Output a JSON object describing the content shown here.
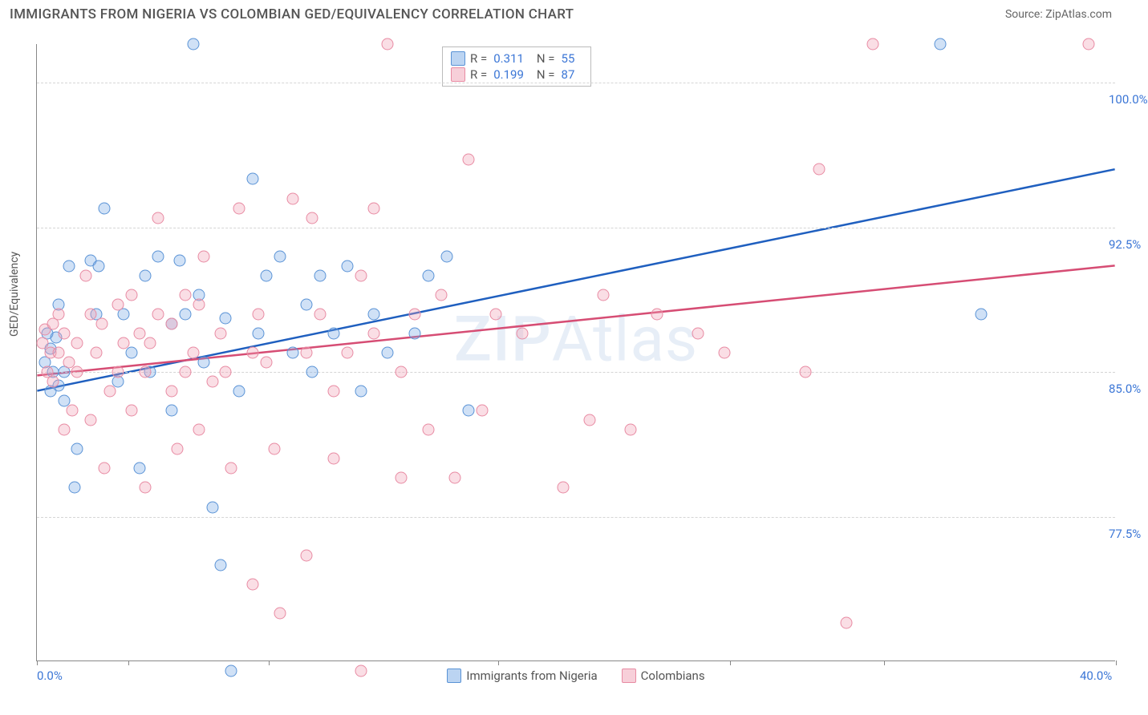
{
  "title": "IMMIGRANTS FROM NIGERIA VS COLOMBIAN GED/EQUIVALENCY CORRELATION CHART",
  "source": "Source: ZipAtlas.com",
  "y_axis_label": "GED/Equivalency",
  "watermark_bold": "ZIP",
  "watermark_rest": "Atlas",
  "chart": {
    "type": "scatter",
    "xlim": [
      0,
      40
    ],
    "ylim": [
      70,
      102
    ],
    "x_ticks": [
      0,
      3.4,
      8.6,
      17.1,
      25.7,
      31.4,
      40
    ],
    "x_tick_labels": {
      "0": "0.0%",
      "40": "40.0%"
    },
    "y_gridlines": [
      77.5,
      85.0,
      92.5,
      100.0
    ],
    "y_tick_labels": [
      "77.5%",
      "85.0%",
      "92.5%",
      "100.0%"
    ],
    "marker_radius": 7.5,
    "plot_bg": "#ffffff",
    "grid_color": "#d5d5d5",
    "axis_color": "#888888",
    "series": [
      {
        "name": "Immigrants from Nigeria",
        "color_fill": "rgba(120,170,230,0.35)",
        "color_stroke": "#5a93d6",
        "trend_color": "#1f5fbf",
        "trend_width": 2.5,
        "R": "0.311",
        "N": "55",
        "trend": {
          "x1": 0,
          "y1": 84.0,
          "x2": 40,
          "y2": 95.5
        },
        "points": [
          [
            0.3,
            85.5
          ],
          [
            0.4,
            87.0
          ],
          [
            0.5,
            84.0
          ],
          [
            0.5,
            86.2
          ],
          [
            0.6,
            85.0
          ],
          [
            0.7,
            86.8
          ],
          [
            0.8,
            88.5
          ],
          [
            0.8,
            84.3
          ],
          [
            1.0,
            85.0
          ],
          [
            1.0,
            83.5
          ],
          [
            1.2,
            90.5
          ],
          [
            1.4,
            79.0
          ],
          [
            1.5,
            81.0
          ],
          [
            2.0,
            90.8
          ],
          [
            2.2,
            88.0
          ],
          [
            2.3,
            90.5
          ],
          [
            2.5,
            93.5
          ],
          [
            3.0,
            84.5
          ],
          [
            3.2,
            88.0
          ],
          [
            3.5,
            86.0
          ],
          [
            3.8,
            80.0
          ],
          [
            4.0,
            90.0
          ],
          [
            4.2,
            85.0
          ],
          [
            4.5,
            91.0
          ],
          [
            5.0,
            87.5
          ],
          [
            5.0,
            83.0
          ],
          [
            5.3,
            90.8
          ],
          [
            5.5,
            88.0
          ],
          [
            5.8,
            102.0
          ],
          [
            6.0,
            89.0
          ],
          [
            6.2,
            85.5
          ],
          [
            6.5,
            78.0
          ],
          [
            6.8,
            75.0
          ],
          [
            7.0,
            87.8
          ],
          [
            7.2,
            69.5
          ],
          [
            7.5,
            84.0
          ],
          [
            8.0,
            95.0
          ],
          [
            8.2,
            87.0
          ],
          [
            8.5,
            90.0
          ],
          [
            9.0,
            91.0
          ],
          [
            9.5,
            86.0
          ],
          [
            10.0,
            88.5
          ],
          [
            10.2,
            85.0
          ],
          [
            10.5,
            90.0
          ],
          [
            11.0,
            87.0
          ],
          [
            11.5,
            90.5
          ],
          [
            12.0,
            84.0
          ],
          [
            12.5,
            88.0
          ],
          [
            13.0,
            86.0
          ],
          [
            14.0,
            87.0
          ],
          [
            14.5,
            90.0
          ],
          [
            15.2,
            91.0
          ],
          [
            16.0,
            83.0
          ],
          [
            33.5,
            102.0
          ],
          [
            35.0,
            88.0
          ]
        ]
      },
      {
        "name": "Colombians",
        "color_fill": "rgba(240,160,180,0.35)",
        "color_stroke": "#e88ba3",
        "trend_color": "#d64d74",
        "trend_width": 2.5,
        "R": "0.199",
        "N": "87",
        "trend": {
          "x1": 0,
          "y1": 84.8,
          "x2": 40,
          "y2": 90.5
        },
        "points": [
          [
            0.2,
            86.5
          ],
          [
            0.3,
            87.2
          ],
          [
            0.4,
            85.0
          ],
          [
            0.5,
            86.0
          ],
          [
            0.6,
            87.5
          ],
          [
            0.6,
            84.5
          ],
          [
            0.8,
            86.0
          ],
          [
            0.8,
            88.0
          ],
          [
            1.0,
            82.0
          ],
          [
            1.0,
            87.0
          ],
          [
            1.2,
            85.5
          ],
          [
            1.3,
            83.0
          ],
          [
            1.5,
            86.5
          ],
          [
            1.5,
            85.0
          ],
          [
            1.8,
            90.0
          ],
          [
            2.0,
            88.0
          ],
          [
            2.0,
            82.5
          ],
          [
            2.2,
            86.0
          ],
          [
            2.4,
            87.5
          ],
          [
            2.5,
            80.0
          ],
          [
            2.7,
            84.0
          ],
          [
            3.0,
            88.5
          ],
          [
            3.0,
            85.0
          ],
          [
            3.2,
            86.5
          ],
          [
            3.5,
            89.0
          ],
          [
            3.5,
            83.0
          ],
          [
            3.8,
            87.0
          ],
          [
            4.0,
            85.0
          ],
          [
            4.0,
            79.0
          ],
          [
            4.2,
            86.5
          ],
          [
            4.5,
            93.0
          ],
          [
            4.5,
            88.0
          ],
          [
            5.0,
            84.0
          ],
          [
            5.0,
            87.5
          ],
          [
            5.2,
            81.0
          ],
          [
            5.5,
            85.0
          ],
          [
            5.5,
            89.0
          ],
          [
            5.8,
            86.0
          ],
          [
            6.0,
            88.5
          ],
          [
            6.0,
            82.0
          ],
          [
            6.2,
            91.0
          ],
          [
            6.5,
            84.5
          ],
          [
            6.8,
            87.0
          ],
          [
            7.0,
            85.0
          ],
          [
            7.2,
            80.0
          ],
          [
            7.5,
            93.5
          ],
          [
            8.0,
            86.0
          ],
          [
            8.0,
            74.0
          ],
          [
            8.2,
            88.0
          ],
          [
            8.5,
            85.5
          ],
          [
            8.8,
            81.0
          ],
          [
            9.0,
            72.5
          ],
          [
            9.5,
            94.0
          ],
          [
            10.0,
            86.0
          ],
          [
            10.0,
            75.5
          ],
          [
            10.2,
            93.0
          ],
          [
            10.5,
            88.0
          ],
          [
            11.0,
            84.0
          ],
          [
            11.0,
            80.5
          ],
          [
            11.5,
            86.0
          ],
          [
            12.0,
            90.0
          ],
          [
            12.0,
            69.5
          ],
          [
            12.5,
            93.5
          ],
          [
            12.5,
            87.0
          ],
          [
            13.0,
            102.0
          ],
          [
            13.5,
            85.0
          ],
          [
            13.5,
            79.5
          ],
          [
            14.0,
            88.0
          ],
          [
            14.5,
            82.0
          ],
          [
            15.0,
            89.0
          ],
          [
            15.5,
            79.5
          ],
          [
            16.0,
            96.0
          ],
          [
            16.5,
            83.0
          ],
          [
            17.0,
            88.0
          ],
          [
            18.0,
            87.0
          ],
          [
            19.5,
            79.0
          ],
          [
            20.5,
            82.5
          ],
          [
            21.0,
            89.0
          ],
          [
            22.0,
            82.0
          ],
          [
            23.0,
            88.0
          ],
          [
            24.5,
            87.0
          ],
          [
            25.5,
            86.0
          ],
          [
            28.5,
            85.0
          ],
          [
            29.0,
            95.5
          ],
          [
            30.0,
            72.0
          ],
          [
            31.0,
            102.0
          ],
          [
            39.0,
            102.0
          ]
        ]
      }
    ],
    "legend_bottom": [
      {
        "swatch": "blue",
        "label": "Immigrants from Nigeria"
      },
      {
        "swatch": "pink",
        "label": "Colombians"
      }
    ]
  }
}
